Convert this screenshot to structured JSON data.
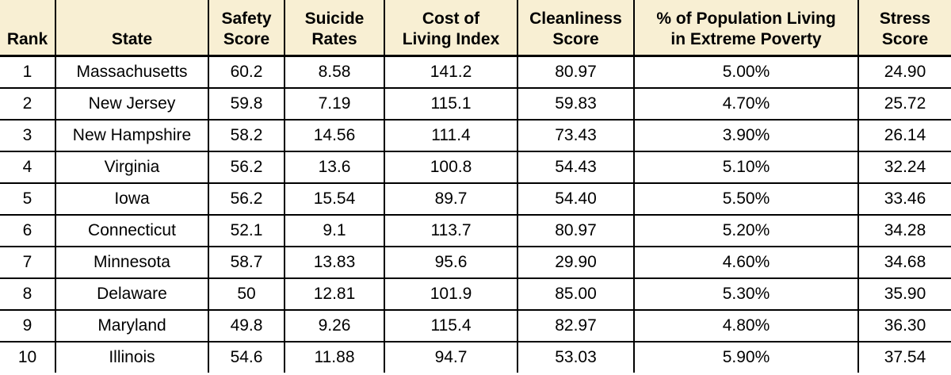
{
  "colors": {
    "header_bg": "#F8EFD3",
    "border": "#000000",
    "row_bg": "#FFFFFF",
    "text": "#000000"
  },
  "table": {
    "columns": [
      {
        "key": "rank",
        "label": "Rank"
      },
      {
        "key": "state",
        "label": "State"
      },
      {
        "key": "safety",
        "label": "Safety\nScore"
      },
      {
        "key": "suicide",
        "label": "Suicide\nRates"
      },
      {
        "key": "cost",
        "label": "Cost of\nLiving Index"
      },
      {
        "key": "clean",
        "label": "Cleanliness\nScore"
      },
      {
        "key": "poverty",
        "label": "% of Population Living\nin Extreme Poverty"
      },
      {
        "key": "stress",
        "label": "Stress\nScore"
      }
    ],
    "rows": [
      {
        "rank": "1",
        "state": "Massachusetts",
        "safety": "60.2",
        "suicide": "8.58",
        "cost": "141.2",
        "clean": "80.97",
        "poverty": "5.00%",
        "stress": "24.90"
      },
      {
        "rank": "2",
        "state": "New Jersey",
        "safety": "59.8",
        "suicide": "7.19",
        "cost": "115.1",
        "clean": "59.83",
        "poverty": "4.70%",
        "stress": "25.72"
      },
      {
        "rank": "3",
        "state": "New Hampshire",
        "safety": "58.2",
        "suicide": "14.56",
        "cost": "111.4",
        "clean": "73.43",
        "poverty": "3.90%",
        "stress": "26.14"
      },
      {
        "rank": "4",
        "state": "Virginia",
        "safety": "56.2",
        "suicide": "13.6",
        "cost": "100.8",
        "clean": "54.43",
        "poverty": "5.10%",
        "stress": "32.24"
      },
      {
        "rank": "5",
        "state": "Iowa",
        "safety": "56.2",
        "suicide": "15.54",
        "cost": "89.7",
        "clean": "54.40",
        "poverty": "5.50%",
        "stress": "33.46"
      },
      {
        "rank": "6",
        "state": "Connecticut",
        "safety": "52.1",
        "suicide": "9.1",
        "cost": "113.7",
        "clean": "80.97",
        "poverty": "5.20%",
        "stress": "34.28"
      },
      {
        "rank": "7",
        "state": "Minnesota",
        "safety": "58.7",
        "suicide": "13.83",
        "cost": "95.6",
        "clean": "29.90",
        "poverty": "4.60%",
        "stress": "34.68"
      },
      {
        "rank": "8",
        "state": "Delaware",
        "safety": "50",
        "suicide": "12.81",
        "cost": "101.9",
        "clean": "85.00",
        "poverty": "5.30%",
        "stress": "35.90"
      },
      {
        "rank": "9",
        "state": "Maryland",
        "safety": "49.8",
        "suicide": "9.26",
        "cost": "115.4",
        "clean": "82.97",
        "poverty": "4.80%",
        "stress": "36.30"
      },
      {
        "rank": "10",
        "state": "Illinois",
        "safety": "54.6",
        "suicide": "11.88",
        "cost": "94.7",
        "clean": "53.03",
        "poverty": "5.90%",
        "stress": "37.54"
      }
    ]
  },
  "chart_data": {
    "type": "table",
    "title": "",
    "columns": [
      "Rank",
      "State",
      "Safety Score",
      "Suicide Rates",
      "Cost of Living Index",
      "Cleanliness Score",
      "% of Population Living in Extreme Poverty",
      "Stress Score"
    ],
    "rows": [
      [
        1,
        "Massachusetts",
        60.2,
        8.58,
        141.2,
        80.97,
        "5.00%",
        24.9
      ],
      [
        2,
        "New Jersey",
        59.8,
        7.19,
        115.1,
        59.83,
        "4.70%",
        25.72
      ],
      [
        3,
        "New Hampshire",
        58.2,
        14.56,
        111.4,
        73.43,
        "3.90%",
        26.14
      ],
      [
        4,
        "Virginia",
        56.2,
        13.6,
        100.8,
        54.43,
        "5.10%",
        32.24
      ],
      [
        5,
        "Iowa",
        56.2,
        15.54,
        89.7,
        54.4,
        "5.50%",
        33.46
      ],
      [
        6,
        "Connecticut",
        52.1,
        9.1,
        113.7,
        80.97,
        "5.20%",
        34.28
      ],
      [
        7,
        "Minnesota",
        58.7,
        13.83,
        95.6,
        29.9,
        "4.60%",
        34.68
      ],
      [
        8,
        "Delaware",
        50,
        12.81,
        101.9,
        85.0,
        "5.30%",
        35.9
      ],
      [
        9,
        "Maryland",
        49.8,
        9.26,
        115.4,
        82.97,
        "4.80%",
        36.3
      ],
      [
        10,
        "Illinois",
        54.6,
        11.88,
        94.7,
        53.03,
        "5.90%",
        37.54
      ]
    ]
  }
}
